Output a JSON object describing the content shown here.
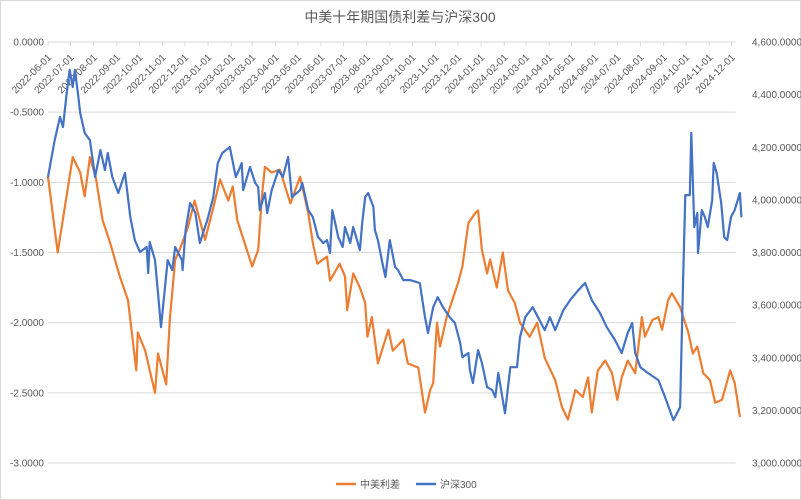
{
  "chart_data": {
    "type": "line",
    "title": "中美十年期国债利差与沪深300",
    "x_type": "date",
    "x_tick_labels": [
      "2022-06-01",
      "2022-07-01",
      "2022-08-01",
      "2022-09-01",
      "2022-10-01",
      "2022-11-01",
      "2022-12-01",
      "2023-01-01",
      "2023-02-01",
      "2023-03-01",
      "2023-04-01",
      "2023-05-01",
      "2023-06-01",
      "2023-07-01",
      "2023-08-01",
      "2023-09-01",
      "2023-10-01",
      "2023-11-01",
      "2023-12-01",
      "2024-01-01",
      "2024-02-01",
      "2024-03-01",
      "2024-04-01",
      "2024-05-01",
      "2024-06-01",
      "2024-07-01",
      "2024-08-01",
      "2024-09-01",
      "2024-10-01",
      "2024-11-01",
      "2024-12-01"
    ],
    "x_axis_position": "top",
    "left_axis": {
      "ylim": [
        -3,
        0
      ],
      "tick_labels": [
        "0.0000",
        "-0.5000",
        "-1.0000",
        "-1.5000",
        "-2.0000",
        "-2.5000",
        "-3.0000"
      ],
      "ticks": [
        0,
        -0.5,
        -1,
        -1.5,
        -2,
        -2.5,
        -3
      ]
    },
    "right_axis": {
      "ylim": [
        3000,
        4600
      ],
      "tick_labels": [
        "4,600.0000",
        "4,400.0000",
        "4,200.0000",
        "4,000.0000",
        "3,800.0000",
        "3,600.0000",
        "3,400.0000",
        "3,200.0000",
        "3,000.0000"
      ],
      "ticks": [
        4600,
        4400,
        4200,
        4000,
        3800,
        3600,
        3400,
        3200,
        3000
      ]
    },
    "grid": true,
    "legend_position": "bottom",
    "series": [
      {
        "name": "中美利差",
        "axis": "left",
        "color": "#ED7D31",
        "x": [
          "2022-06-01",
          "2022-06-14",
          "2022-07-04",
          "2022-07-14",
          "2022-07-20",
          "2022-07-27",
          "2022-08-04",
          "2022-08-13",
          "2022-08-23",
          "2022-09-05",
          "2022-09-16",
          "2022-09-27",
          "2022-09-29",
          "2022-10-09",
          "2022-10-22",
          "2022-10-26",
          "2022-11-06",
          "2022-11-11",
          "2022-11-18",
          "2022-11-24",
          "2022-12-05",
          "2022-12-14",
          "2022-12-28",
          "2023-01-08",
          "2023-01-17",
          "2023-01-28",
          "2023-02-03",
          "2023-02-09",
          "2023-02-23",
          "2023-03-01",
          "2023-03-09",
          "2023-03-14",
          "2023-03-18",
          "2023-03-27",
          "2023-04-07",
          "2023-04-21",
          "2023-05-04",
          "2023-05-15",
          "2023-05-21",
          "2023-05-27",
          "2023-06-09",
          "2023-06-13",
          "2023-06-26",
          "2023-07-03",
          "2023-07-06",
          "2023-07-14",
          "2023-07-23",
          "2023-07-30",
          "2023-08-02",
          "2023-08-08",
          "2023-08-16",
          "2023-08-30",
          "2023-09-05",
          "2023-09-19",
          "2023-09-25",
          "2023-10-09",
          "2023-10-18",
          "2023-10-25",
          "2023-10-29",
          "2023-11-03",
          "2023-11-07",
          "2023-11-16",
          "2023-12-01",
          "2023-12-07",
          "2023-12-15",
          "2023-12-24",
          "2023-12-28",
          "2024-01-02",
          "2024-01-09",
          "2024-01-13",
          "2024-01-22",
          "2024-01-30",
          "2024-02-06",
          "2024-02-15",
          "2024-02-22",
          "2024-03-06",
          "2024-03-16",
          "2024-03-26",
          "2024-04-09",
          "2024-04-18",
          "2024-04-26",
          "2024-05-06",
          "2024-05-16",
          "2024-05-23",
          "2024-05-28",
          "2024-06-05",
          "2024-06-15",
          "2024-06-24",
          "2024-07-01",
          "2024-07-07",
          "2024-07-15",
          "2024-07-25",
          "2024-08-03",
          "2024-08-07",
          "2024-08-17",
          "2024-08-25",
          "2024-08-30",
          "2024-09-07",
          "2024-09-12",
          "2024-09-23",
          "2024-10-04",
          "2024-10-10",
          "2024-10-16",
          "2024-10-24",
          "2024-11-02",
          "2024-11-09",
          "2024-11-18",
          "2024-11-29",
          "2024-12-05",
          "2024-12-12"
        ],
        "values": [
          -0.96,
          -1.5,
          -0.82,
          -0.93,
          -1.1,
          -0.82,
          -0.97,
          -1.27,
          -1.43,
          -1.67,
          -1.84,
          -2.34,
          -2.07,
          -2.2,
          -2.5,
          -2.22,
          -2.44,
          -1.97,
          -1.55,
          -1.48,
          -1.32,
          -1.13,
          -1.41,
          -1.18,
          -0.98,
          -1.13,
          -1.03,
          -1.27,
          -1.5,
          -1.6,
          -1.48,
          -1.1,
          -0.89,
          -0.93,
          -0.91,
          -1.15,
          -0.96,
          -1.22,
          -1.43,
          -1.58,
          -1.53,
          -1.7,
          -1.58,
          -1.67,
          -1.91,
          -1.65,
          -1.75,
          -1.86,
          -2.1,
          -1.96,
          -2.29,
          -2.05,
          -2.2,
          -2.12,
          -2.29,
          -2.32,
          -2.64,
          -2.48,
          -2.43,
          -2.0,
          -2.17,
          -1.96,
          -1.72,
          -1.6,
          -1.29,
          -1.22,
          -1.2,
          -1.48,
          -1.65,
          -1.55,
          -1.75,
          -1.5,
          -1.77,
          -1.86,
          -2.0,
          -2.1,
          -2.0,
          -2.25,
          -2.41,
          -2.6,
          -2.69,
          -2.48,
          -2.53,
          -2.39,
          -2.64,
          -2.34,
          -2.27,
          -2.36,
          -2.55,
          -2.39,
          -2.27,
          -2.36,
          -1.96,
          -2.1,
          -1.98,
          -1.96,
          -2.05,
          -1.84,
          -1.79,
          -1.89,
          -2.07,
          -2.22,
          -2.17,
          -2.36,
          -2.41,
          -2.57,
          -2.55,
          -2.34,
          -2.43,
          -2.67
        ]
      },
      {
        "name": "沪深300",
        "axis": "right",
        "color": "#4472C4",
        "x": [
          "2022-06-01",
          "2022-06-10",
          "2022-06-17",
          "2022-06-21",
          "2022-06-26",
          "2022-06-30",
          "2022-07-04",
          "2022-07-07",
          "2022-07-11",
          "2022-07-14",
          "2022-07-20",
          "2022-07-27",
          "2022-08-03",
          "2022-08-10",
          "2022-08-16",
          "2022-08-20",
          "2022-08-26",
          "2022-09-03",
          "2022-09-12",
          "2022-09-19",
          "2022-09-25",
          "2022-10-02",
          "2022-10-11",
          "2022-10-13",
          "2022-10-15",
          "2022-10-22",
          "2022-10-26",
          "2022-10-30",
          "2022-11-04",
          "2022-11-08",
          "2022-11-14",
          "2022-11-18",
          "2022-11-22",
          "2022-11-27",
          "2022-11-28",
          "2022-12-02",
          "2022-12-08",
          "2022-12-15",
          "2022-12-21",
          "2022-12-31",
          "2023-01-08",
          "2023-01-14",
          "2023-01-20",
          "2023-01-30",
          "2023-02-07",
          "2023-02-13",
          "2023-02-15",
          "2023-02-17",
          "2023-02-26",
          "2023-03-05",
          "2023-03-09",
          "2023-03-11",
          "2023-03-18",
          "2023-03-21",
          "2023-03-27",
          "2023-04-05",
          "2023-04-11",
          "2023-04-18",
          "2023-04-23",
          "2023-05-04",
          "2023-05-07",
          "2023-05-15",
          "2023-05-21",
          "2023-05-28",
          "2023-06-04",
          "2023-06-09",
          "2023-06-13",
          "2023-06-16",
          "2023-06-20",
          "2023-06-24",
          "2023-06-30",
          "2023-07-03",
          "2023-07-10",
          "2023-07-14",
          "2023-07-23",
          "2023-07-26",
          "2023-07-30",
          "2023-08-03",
          "2023-08-10",
          "2023-08-12",
          "2023-08-16",
          "2023-08-22",
          "2023-08-26",
          "2023-09-01",
          "2023-09-08",
          "2023-09-12",
          "2023-09-19",
          "2023-09-28",
          "2023-10-11",
          "2023-10-18",
          "2023-10-22",
          "2023-10-29",
          "2023-11-04",
          "2023-11-11",
          "2023-11-20",
          "2023-11-27",
          "2023-12-04",
          "2023-12-07",
          "2023-12-15",
          "2023-12-17",
          "2023-12-21",
          "2023-12-28",
          "2024-01-02",
          "2024-01-09",
          "2024-01-16",
          "2024-01-20",
          "2024-01-24",
          "2024-02-02",
          "2024-02-09",
          "2024-02-18",
          "2024-02-22",
          "2024-02-29",
          "2024-03-10",
          "2024-03-17",
          "2024-03-26",
          "2024-04-02",
          "2024-04-09",
          "2024-04-20",
          "2024-04-29",
          "2024-05-10",
          "2024-05-19",
          "2024-05-28",
          "2024-06-08",
          "2024-06-17",
          "2024-06-28",
          "2024-07-07",
          "2024-07-15",
          "2024-07-21",
          "2024-07-25",
          "2024-08-01",
          "2024-08-11",
          "2024-08-25",
          "2024-09-03",
          "2024-09-14",
          "2024-09-23",
          "2024-09-27",
          "2024-09-30",
          "2024-10-06",
          "2024-10-08",
          "2024-10-12",
          "2024-10-16",
          "2024-10-17",
          "2024-10-22",
          "2024-10-26",
          "2024-10-30",
          "2024-11-05",
          "2024-11-07",
          "2024-11-11",
          "2024-11-17",
          "2024-11-21",
          "2024-11-25",
          "2024-11-30",
          "2024-12-05",
          "2024-12-12",
          "2024-12-14"
        ],
        "values": [
          4087,
          4227,
          4315,
          4277,
          4406,
          4494,
          4429,
          4494,
          4406,
          4330,
          4254,
          4227,
          4087,
          4189,
          4113,
          4178,
          4087,
          4026,
          4102,
          3935,
          3847,
          3802,
          3821,
          3722,
          3840,
          3771,
          3646,
          3516,
          3657,
          3771,
          3733,
          3821,
          3798,
          3771,
          3733,
          3885,
          3988,
          3950,
          3836,
          3923,
          4011,
          4140,
          4178,
          4201,
          4087,
          4125,
          4140,
          4037,
          4125,
          4064,
          4049,
          3961,
          4026,
          3950,
          4037,
          4113,
          4087,
          4163,
          4011,
          4037,
          4064,
          3961,
          3935,
          3859,
          3836,
          3847,
          3798,
          3961,
          3912,
          3859,
          3821,
          3897,
          3836,
          3897,
          3809,
          3912,
          4011,
          4026,
          3973,
          3885,
          3847,
          3760,
          3707,
          3847,
          3745,
          3733,
          3695,
          3695,
          3684,
          3554,
          3494,
          3592,
          3630,
          3592,
          3554,
          3532,
          3456,
          3402,
          3418,
          3353,
          3304,
          3429,
          3380,
          3288,
          3277,
          3250,
          3342,
          3189,
          3364,
          3364,
          3478,
          3554,
          3592,
          3554,
          3505,
          3554,
          3505,
          3581,
          3619,
          3657,
          3684,
          3619,
          3570,
          3516,
          3467,
          3418,
          3494,
          3532,
          3418,
          3364,
          3342,
          3315,
          3250,
          3163,
          3212,
          3695,
          4018,
          4018,
          4254,
          3897,
          3950,
          3798,
          3961,
          3935,
          3897,
          3999,
          4140,
          4102,
          3988,
          3859,
          3847,
          3935,
          3961,
          4026,
          3935
        ]
      }
    ]
  }
}
